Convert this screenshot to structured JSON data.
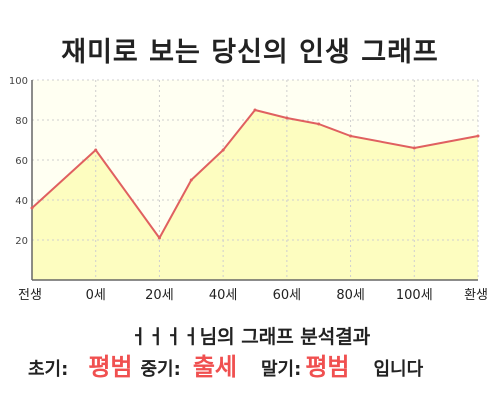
{
  "title": "재미로 보는 당신의 인생 그래프",
  "result": {
    "name": "ㅓㅓㅓㅓ",
    "suffix": "님의 그래프 분석결과"
  },
  "summary": {
    "early_label": "초기:",
    "early_value": "평범",
    "mid_label": "중기:",
    "mid_value": "출세",
    "late_label": "말기:",
    "late_value": "평범",
    "ending": "입니다"
  },
  "colors": {
    "line": "#e06060",
    "fill": "#fdfdc0",
    "plot_bg": "#fffff2",
    "grid": "#cfcfcf",
    "accent": "#f05050"
  },
  "chart_data": {
    "type": "area",
    "title": "재미로 보는 당신의 인생 그래프",
    "xlabel": "",
    "ylabel": "",
    "ylim": [
      0,
      100
    ],
    "yticks": [
      20,
      40,
      60,
      80,
      100
    ],
    "xticks": [
      "전생",
      "0세",
      "20세",
      "40세",
      "60세",
      "80세",
      "100세",
      "환생"
    ],
    "grid": true,
    "points": [
      {
        "x": "전생",
        "y": 36
      },
      {
        "x": "0세",
        "y": 65
      },
      {
        "x": "20세",
        "y": 21
      },
      {
        "x": "30세",
        "y": 50
      },
      {
        "x": "40세",
        "y": 65
      },
      {
        "x": "50세",
        "y": 85
      },
      {
        "x": "60세",
        "y": 81
      },
      {
        "x": "70세",
        "y": 78
      },
      {
        "x": "80세",
        "y": 72
      },
      {
        "x": "100세",
        "y": 66
      },
      {
        "x": "환생",
        "y": 72
      }
    ]
  }
}
